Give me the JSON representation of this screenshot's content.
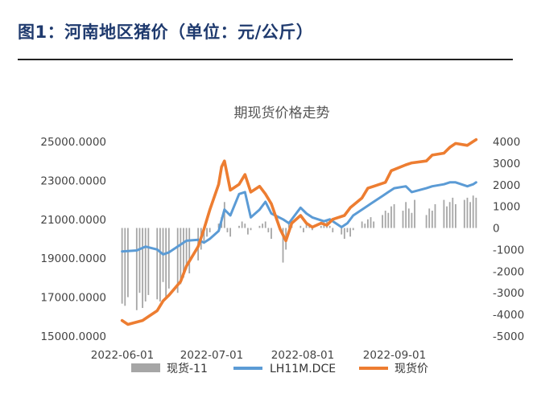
{
  "page_title": "图1：河南地区猪价（单位：元/公斤）",
  "chart_data": {
    "type": "line",
    "title": "期现货价格走势",
    "x_tick_labels": [
      "2022-06-01",
      "2022-07-01",
      "2022-08-01",
      "2022-09-01"
    ],
    "y_left": {
      "min": 15000,
      "max": 25000,
      "ticks": [
        "25000.0000",
        "23000.0000",
        "21000.0000",
        "19000.0000",
        "17000.0000",
        "15000.0000"
      ]
    },
    "y_right": {
      "min": -5000,
      "max": 4000,
      "ticks": [
        "4000",
        "3000",
        "2000",
        "1000",
        "0",
        "-1000",
        "-2000",
        "-3000",
        "-4000",
        "-5000"
      ]
    },
    "legend_position": "bottom",
    "series": [
      {
        "name": "现货-11",
        "kind": "bar",
        "axis": "right",
        "color": "#a6a6a6",
        "x": [
          "2022-06-01",
          "2022-06-02",
          "2022-06-03",
          "2022-06-06",
          "2022-06-07",
          "2022-06-08",
          "2022-06-09",
          "2022-06-10",
          "2022-06-13",
          "2022-06-14",
          "2022-06-15",
          "2022-06-16",
          "2022-06-17",
          "2022-06-20",
          "2022-06-21",
          "2022-06-22",
          "2022-06-23",
          "2022-06-24",
          "2022-06-27",
          "2022-06-28",
          "2022-06-29",
          "2022-06-30",
          "2022-07-01",
          "2022-07-04",
          "2022-07-05",
          "2022-07-06",
          "2022-07-07",
          "2022-07-08",
          "2022-07-11",
          "2022-07-12",
          "2022-07-13",
          "2022-07-14",
          "2022-07-15",
          "2022-07-18",
          "2022-07-19",
          "2022-07-20",
          "2022-07-21",
          "2022-07-22",
          "2022-07-25",
          "2022-07-26",
          "2022-07-27",
          "2022-07-28",
          "2022-07-29",
          "2022-08-01",
          "2022-08-02",
          "2022-08-03",
          "2022-08-04",
          "2022-08-05",
          "2022-08-08",
          "2022-08-09",
          "2022-08-10",
          "2022-08-11",
          "2022-08-12",
          "2022-08-15",
          "2022-08-16",
          "2022-08-17",
          "2022-08-18",
          "2022-08-19",
          "2022-08-22",
          "2022-08-23",
          "2022-08-24",
          "2022-08-25",
          "2022-08-26",
          "2022-08-29",
          "2022-08-30",
          "2022-08-31",
          "2022-09-01",
          "2022-09-02",
          "2022-09-05",
          "2022-09-06",
          "2022-09-07",
          "2022-09-08",
          "2022-09-09",
          "2022-09-13",
          "2022-09-14",
          "2022-09-15",
          "2022-09-16",
          "2022-09-19",
          "2022-09-20",
          "2022-09-21",
          "2022-09-22",
          "2022-09-23",
          "2022-09-26",
          "2022-09-27",
          "2022-09-28",
          "2022-09-29",
          "2022-09-30"
        ],
        "values": [
          -3500,
          -3600,
          -3200,
          -3800,
          -3000,
          -3700,
          -3400,
          -3100,
          -3300,
          -3400,
          -2500,
          -3200,
          -2800,
          -3000,
          -2600,
          -2300,
          -1900,
          -2100,
          -1500,
          -1000,
          -600,
          -400,
          -200,
          200,
          500,
          1200,
          -200,
          -400,
          100,
          300,
          200,
          -300,
          -100,
          100,
          200,
          300,
          -200,
          -500,
          -100,
          -1600,
          -1000,
          200,
          300,
          100,
          -200,
          300,
          200,
          -100,
          100,
          200,
          300,
          100,
          -200,
          -300,
          -500,
          -200,
          -400,
          -100,
          300,
          200,
          400,
          500,
          300,
          600,
          800,
          700,
          1000,
          1100,
          800,
          1200,
          900,
          700,
          1300,
          600,
          900,
          800,
          1100,
          1300,
          1000,
          1200,
          1400,
          1100,
          1300,
          1400,
          1200,
          1500,
          1400
        ]
      },
      {
        "name": "LH11M.DCE",
        "kind": "line",
        "axis": "left",
        "color": "#5b9bd5",
        "x": [
          "2022-06-01",
          "2022-06-06",
          "2022-06-09",
          "2022-06-13",
          "2022-06-15",
          "2022-06-17",
          "2022-06-21",
          "2022-06-23",
          "2022-06-27",
          "2022-06-29",
          "2022-07-01",
          "2022-07-04",
          "2022-07-06",
          "2022-07-08",
          "2022-07-11",
          "2022-07-13",
          "2022-07-15",
          "2022-07-18",
          "2022-07-20",
          "2022-07-22",
          "2022-07-26",
          "2022-07-28",
          "2022-08-01",
          "2022-08-03",
          "2022-08-05",
          "2022-08-09",
          "2022-08-11",
          "2022-08-15",
          "2022-08-17",
          "2022-08-19",
          "2022-08-23",
          "2022-08-25",
          "2022-08-29",
          "2022-08-31",
          "2022-09-02",
          "2022-09-06",
          "2022-09-08",
          "2022-09-13",
          "2022-09-15",
          "2022-09-19",
          "2022-09-21",
          "2022-09-23",
          "2022-09-27",
          "2022-09-29",
          "2022-09-30"
        ],
        "values": [
          19350,
          19400,
          19600,
          19450,
          19200,
          19300,
          19700,
          19900,
          19950,
          19800,
          20000,
          20400,
          21500,
          21200,
          22300,
          22400,
          21100,
          21500,
          21900,
          21300,
          21000,
          20800,
          21600,
          21300,
          21100,
          20900,
          21000,
          20600,
          20800,
          21200,
          21600,
          21800,
          22200,
          22400,
          22600,
          22700,
          22400,
          22600,
          22700,
          22800,
          22900,
          22900,
          22700,
          22800,
          22900
        ]
      },
      {
        "name": "现货价",
        "kind": "line",
        "axis": "left",
        "color": "#ed7d31",
        "x": [
          "2022-06-01",
          "2022-06-03",
          "2022-06-08",
          "2022-06-10",
          "2022-06-13",
          "2022-06-15",
          "2022-06-17",
          "2022-06-21",
          "2022-06-23",
          "2022-06-27",
          "2022-06-29",
          "2022-07-01",
          "2022-07-04",
          "2022-07-05",
          "2022-07-06",
          "2022-07-08",
          "2022-07-11",
          "2022-07-13",
          "2022-07-15",
          "2022-07-18",
          "2022-07-20",
          "2022-07-22",
          "2022-07-25",
          "2022-07-27",
          "2022-07-29",
          "2022-08-01",
          "2022-08-03",
          "2022-08-05",
          "2022-08-08",
          "2022-08-10",
          "2022-08-12",
          "2022-08-16",
          "2022-08-18",
          "2022-08-22",
          "2022-08-24",
          "2022-08-26",
          "2022-08-30",
          "2022-09-01",
          "2022-09-06",
          "2022-09-08",
          "2022-09-13",
          "2022-09-15",
          "2022-09-19",
          "2022-09-21",
          "2022-09-23",
          "2022-09-27",
          "2022-09-29",
          "2022-09-30"
        ],
        "values": [
          15800,
          15600,
          15800,
          16000,
          16300,
          16800,
          17100,
          17800,
          18600,
          19600,
          20500,
          21500,
          22800,
          23700,
          24000,
          22500,
          22800,
          23300,
          22400,
          22700,
          22300,
          21800,
          20500,
          19900,
          20800,
          21200,
          20800,
          20600,
          20800,
          20700,
          21000,
          21200,
          21600,
          22100,
          22600,
          22700,
          22900,
          23500,
          23800,
          23900,
          24000,
          24300,
          24400,
          24700,
          24900,
          24800,
          25000,
          25100
        ]
      }
    ]
  }
}
